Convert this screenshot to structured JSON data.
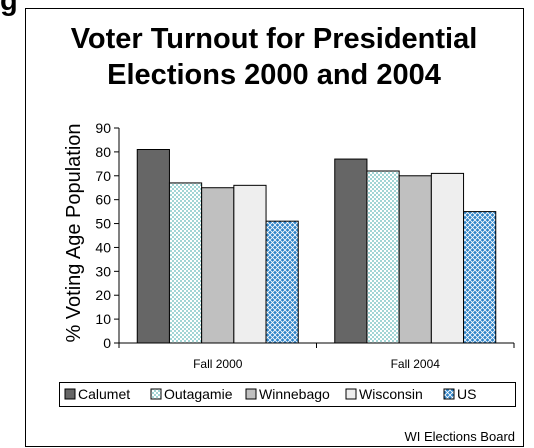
{
  "page": {
    "top_fragment": "g"
  },
  "chart_data": {
    "type": "bar",
    "title_lines": [
      "Voter Turnout for Presidential",
      "Elections 2000 and 2004"
    ],
    "xlabel": "",
    "ylabel": "% Voting Age Population",
    "ylim": [
      0,
      90
    ],
    "yticks": [
      0,
      10,
      20,
      30,
      40,
      50,
      60,
      70,
      80,
      90
    ],
    "categories": [
      "Fall 2000",
      "Fall 2004"
    ],
    "grid": false,
    "legend_position": "bottom",
    "series": [
      {
        "name": "Calumet",
        "values": [
          81,
          77
        ],
        "fill": "#666666",
        "pattern": "solid"
      },
      {
        "name": "Outagamie",
        "values": [
          67,
          72
        ],
        "fill": "#ffffff",
        "pattern": "teal-dots",
        "pattern_color": "#5fb8b8"
      },
      {
        "name": "Winnebago",
        "values": [
          65,
          70
        ],
        "fill": "#c0c0c0",
        "pattern": "solid"
      },
      {
        "name": "Wisconsin",
        "values": [
          66,
          71
        ],
        "fill": "#eeeeee",
        "pattern": "solid"
      },
      {
        "name": "US",
        "values": [
          51,
          55
        ],
        "fill": "#2f84c8",
        "pattern": "crosshatch",
        "pattern_color": "#ffffff"
      }
    ],
    "source": "WI Elections Board"
  }
}
